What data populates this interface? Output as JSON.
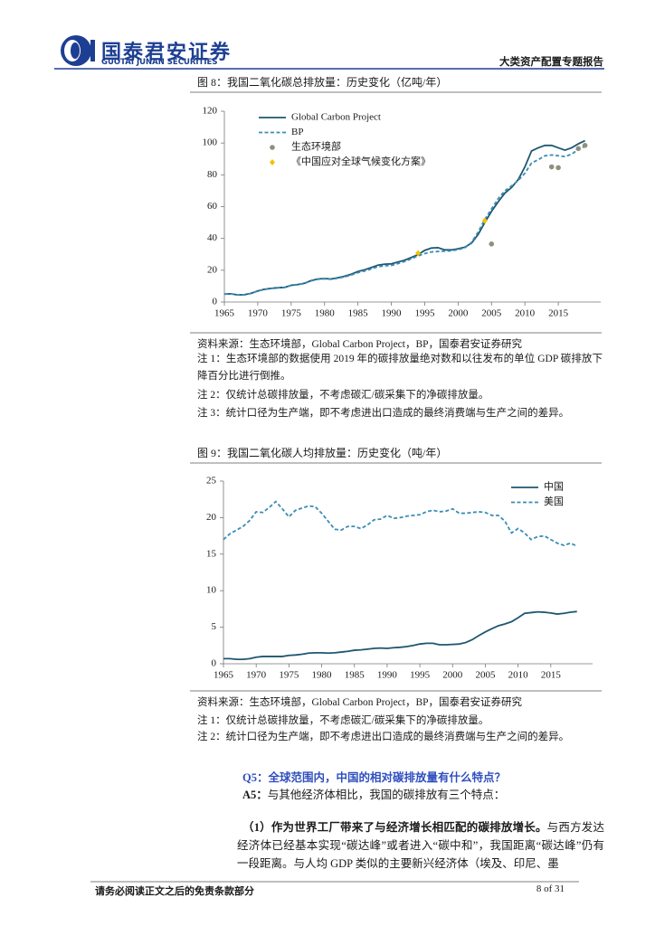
{
  "header": {
    "company": "国泰君安证券",
    "company_en": "GUOTAI JUNAN SECURITIES",
    "report_type": "大类资产配置专题报告"
  },
  "chart_data": [
    {
      "type": "line",
      "title": "图 8：我国二氧化碳总排放量：历史变化（亿吨/年）",
      "x": [
        1965,
        1966,
        1967,
        1968,
        1969,
        1970,
        1971,
        1972,
        1973,
        1974,
        1975,
        1976,
        1977,
        1978,
        1979,
        1980,
        1981,
        1982,
        1983,
        1984,
        1985,
        1986,
        1987,
        1988,
        1989,
        1990,
        1991,
        1992,
        1993,
        1994,
        1995,
        1996,
        1997,
        1998,
        1999,
        2000,
        2001,
        2002,
        2003,
        2004,
        2005,
        2006,
        2007,
        2008,
        2009,
        2010,
        2011,
        2012,
        2013,
        2014,
        2015,
        2016,
        2017,
        2018,
        2019
      ],
      "xlim": [
        1965,
        2020
      ],
      "xticks": [
        1965,
        1970,
        1975,
        1980,
        1985,
        1990,
        1995,
        2000,
        2005,
        2010,
        2015
      ],
      "ylim": [
        0,
        120
      ],
      "yticks": [
        0,
        20,
        40,
        60,
        80,
        100,
        120
      ],
      "legend": "upper left",
      "series": [
        {
          "name": "Global Carbon Project",
          "color": "#1f5670",
          "style": "solid",
          "values": [
            5.0,
            5.2,
            4.5,
            4.6,
            5.5,
            7.0,
            8.0,
            8.6,
            9.0,
            9.2,
            10.5,
            11.0,
            11.8,
            13.5,
            14.5,
            14.8,
            14.5,
            15.3,
            16.2,
            17.5,
            19.2,
            20.3,
            21.7,
            23.2,
            23.8,
            24.0,
            25.2,
            26.3,
            28.0,
            29.8,
            32.5,
            34.0,
            34.2,
            32.8,
            32.8,
            33.5,
            34.5,
            37.0,
            42.5,
            50.0,
            57.0,
            63.0,
            68.5,
            72.0,
            77.0,
            85.0,
            95.0,
            97.0,
            98.5,
            98.5,
            97.0,
            95.5,
            97.0,
            99.5,
            101.5
          ]
        },
        {
          "name": "BP",
          "color": "#3a8db5",
          "style": "dashed",
          "values": [
            5.0,
            5.1,
            4.4,
            4.5,
            5.4,
            6.9,
            7.9,
            8.5,
            8.9,
            9.1,
            10.4,
            10.9,
            11.7,
            13.3,
            14.3,
            14.6,
            14.3,
            15.0,
            15.8,
            17.0,
            18.5,
            19.5,
            20.8,
            22.2,
            22.8,
            23.0,
            24.2,
            25.5,
            27.2,
            29.0,
            30.5,
            31.5,
            31.8,
            32.0,
            32.2,
            33.0,
            34.0,
            37.5,
            44.0,
            52.0,
            58.5,
            65.0,
            70.0,
            73.0,
            76.5,
            81.0,
            87.5,
            89.5,
            92.0,
            92.5,
            92.0,
            91.5,
            93.0,
            96.0,
            98.0
          ]
        },
        {
          "name": "生态环境部",
          "color": "#8f8f7e",
          "style": "circle",
          "x": [
            2005,
            2014,
            2015,
            2018,
            2019
          ],
          "values": [
            36.5,
            85,
            84.5,
            96.5,
            98.5
          ]
        },
        {
          "name": "《中国应对全球气候变化方案》",
          "color": "#f2c200",
          "style": "diamond",
          "x": [
            1994,
            2004
          ],
          "values": [
            30.7,
            51.2
          ]
        }
      ]
    },
    {
      "type": "line",
      "title": "图 9：我国二氧化碳人均排放量：历史变化（吨/年）",
      "x": [
        1965,
        1966,
        1967,
        1968,
        1969,
        1970,
        1971,
        1972,
        1973,
        1974,
        1975,
        1976,
        1977,
        1978,
        1979,
        1980,
        1981,
        1982,
        1983,
        1984,
        1985,
        1986,
        1987,
        1988,
        1989,
        1990,
        1991,
        1992,
        1993,
        1994,
        1995,
        1996,
        1997,
        1998,
        1999,
        2000,
        2001,
        2002,
        2003,
        2004,
        2005,
        2006,
        2007,
        2008,
        2009,
        2010,
        2011,
        2012,
        2013,
        2014,
        2015,
        2016,
        2017,
        2018,
        2019
      ],
      "xlim": [
        1965,
        2020
      ],
      "xticks": [
        1965,
        1970,
        1975,
        1980,
        1985,
        1990,
        1995,
        2000,
        2005,
        2010,
        2015
      ],
      "ylim": [
        0,
        25
      ],
      "yticks": [
        0,
        5,
        10,
        15,
        20,
        25
      ],
      "legend": "upper right",
      "series": [
        {
          "name": "中国",
          "color": "#1f5670",
          "style": "solid",
          "values": [
            0.7,
            0.7,
            0.6,
            0.6,
            0.7,
            0.9,
            1.0,
            1.0,
            1.0,
            1.0,
            1.15,
            1.2,
            1.3,
            1.45,
            1.5,
            1.5,
            1.45,
            1.5,
            1.6,
            1.7,
            1.85,
            1.9,
            2.0,
            2.1,
            2.15,
            2.1,
            2.2,
            2.25,
            2.35,
            2.5,
            2.7,
            2.8,
            2.8,
            2.6,
            2.6,
            2.65,
            2.7,
            2.9,
            3.3,
            3.85,
            4.35,
            4.8,
            5.2,
            5.45,
            5.75,
            6.3,
            6.9,
            7.0,
            7.1,
            7.05,
            6.95,
            6.8,
            6.9,
            7.05,
            7.15
          ]
        },
        {
          "name": "美国",
          "color": "#3a8db5",
          "style": "dashed",
          "values": [
            17.0,
            17.8,
            18.3,
            18.8,
            19.6,
            20.8,
            20.7,
            21.4,
            22.2,
            21.2,
            20.1,
            21.0,
            21.3,
            21.6,
            21.5,
            20.6,
            19.5,
            18.4,
            18.3,
            18.8,
            18.8,
            18.5,
            19.0,
            19.7,
            19.8,
            20.3,
            19.9,
            20.0,
            20.2,
            20.3,
            20.4,
            20.8,
            21.0,
            20.8,
            20.9,
            21.2,
            20.6,
            20.6,
            20.7,
            20.8,
            20.7,
            20.3,
            20.3,
            19.5,
            17.9,
            18.5,
            17.9,
            17.0,
            17.4,
            17.5,
            17.0,
            16.5,
            16.2,
            16.5,
            16.1
          ]
        }
      ]
    }
  ],
  "figure_notes": [
    {
      "source": "资料来源：生态环境部，Global Carbon Project，BP，国泰君安证券研究",
      "notes": [
        "注 1：生态环境部的数据使用 2019 年的碳排放量绝对数和以往发布的单位 GDP 碳排放下降百分比进行倒推。",
        "注 2：仅统计总碳排放量，不考虑碳汇/碳采集下的净碳排放量。",
        "注 3：统计口径为生产端，即不考虑进出口造成的最终消费端与生产之间的差异。"
      ]
    },
    {
      "source": "资料来源：生态环境部，Global Carbon Project，BP，国泰君安证券研究",
      "notes": [
        "注 1：仅统计总碳排放量，不考虑碳汇/碳采集下的净碳排放量。",
        "注 2：统计口径为生产端，即不考虑进出口造成的最终消费端与生产之间的差异。"
      ]
    }
  ],
  "qa": {
    "question": "Q5：全球范围内，中国的相对碳排放量有什么特点？",
    "answer_label": "A5：",
    "answer": "与其他经济体相比，我国的碳排放有三个特点：",
    "point_lead": "（1）作为世界工厂带来了与经济增长相匹配的碳排放增长。",
    "point_text": "与西方发达经济体已经基本实现“碳达峰”或者进入“碳中和”，我国距离“碳达峰”仍有一段距离。与人均 GDP 类似的主要新兴经济体（埃及、印尼、墨"
  },
  "footer": {
    "disclaimer": "请务必阅读正文之后的免责条款部分",
    "page": "8 of 31"
  }
}
